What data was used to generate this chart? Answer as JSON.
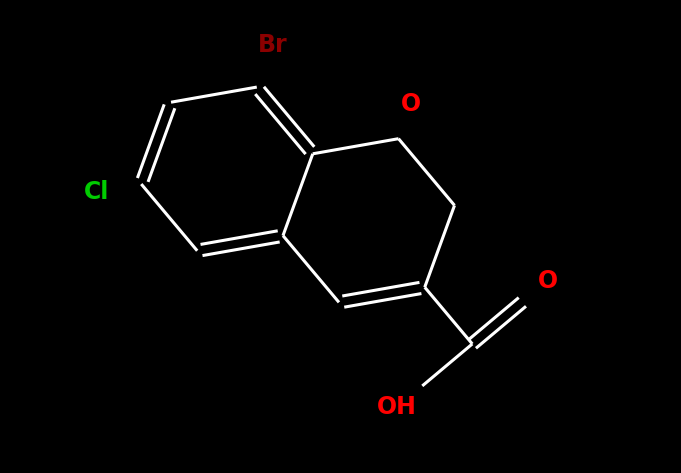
{
  "background_color": "#000000",
  "bond_color": "#ffffff",
  "bond_width": 2.2,
  "label_Br": "Br",
  "label_Cl": "Cl",
  "label_O_ring": "O",
  "label_O_carbonyl": "O",
  "label_OH": "OH",
  "color_Br": "#8B0000",
  "color_Cl": "#00CC00",
  "color_O": "#FF0000",
  "color_OH": "#FF0000",
  "font_size": 17,
  "figsize": [
    6.81,
    4.73
  ],
  "dpi": 100
}
